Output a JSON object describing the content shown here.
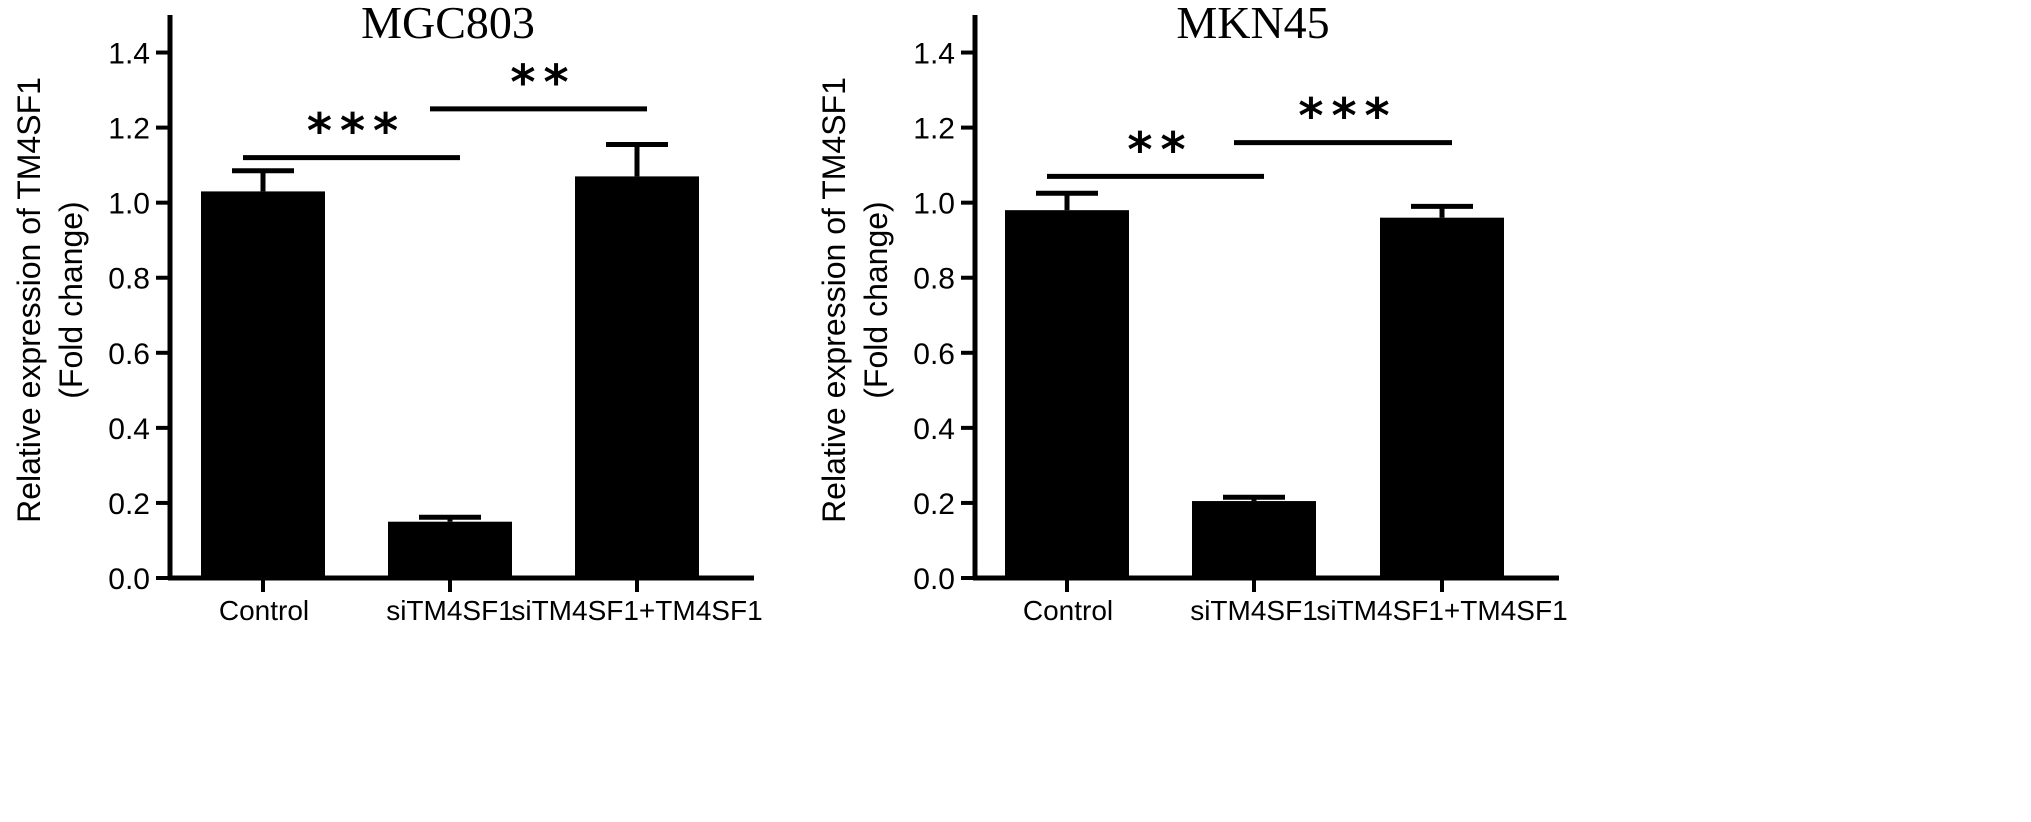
{
  "chart_data": [
    {
      "type": "bar",
      "title": "MGC803",
      "ylabel_line1": "Relative expression of TM4SF1",
      "ylabel_line2": "(Fold change)",
      "categories": [
        "Control",
        "siTM4SF1",
        "siTM4SF1+TM4SF1"
      ],
      "values": [
        1.03,
        0.15,
        1.07
      ],
      "errors": [
        0.055,
        0.012,
        0.085
      ],
      "ylim": [
        0,
        1.5
      ],
      "yticks": [
        "0.0",
        "0.2",
        "0.4",
        "0.6",
        "0.8",
        "1.0",
        "1.2",
        "1.4"
      ],
      "annotations": [
        {
          "from": 0,
          "to": 1,
          "y": 1.12,
          "label": "***"
        },
        {
          "from": 1,
          "to": 2,
          "y": 1.25,
          "label": "**"
        }
      ]
    },
    {
      "type": "bar",
      "title": "MKN45",
      "ylabel_line1": "Relative expression of TM4SF1",
      "ylabel_line2": "(Fold change)",
      "categories": [
        "Control",
        "siTM4SF1",
        "siTM4SF1+TM4SF1"
      ],
      "values": [
        0.98,
        0.205,
        0.96
      ],
      "errors": [
        0.045,
        0.01,
        0.03
      ],
      "ylim": [
        0,
        1.5
      ],
      "yticks": [
        "0.0",
        "0.2",
        "0.4",
        "0.6",
        "0.8",
        "1.0",
        "1.2",
        "1.4"
      ],
      "annotations": [
        {
          "from": 0,
          "to": 1,
          "y": 1.07,
          "label": "**"
        },
        {
          "from": 1,
          "to": 2,
          "y": 1.16,
          "label": "***"
        }
      ]
    }
  ]
}
